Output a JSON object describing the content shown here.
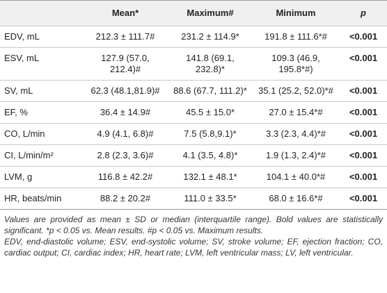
{
  "table": {
    "header": [
      "",
      "Mean*",
      "Maximum#",
      "Minimum",
      "p"
    ],
    "rows": [
      [
        "EDV, mL",
        "212.3 ± 111.7#",
        "231.2 ± 114.9*",
        "191.8 ± 111.6*#",
        "<0.001"
      ],
      [
        "ESV, mL",
        "127.9 (57.0, 212.4)#",
        "141.8 (69.1, 232.8)*",
        "109.3 (46.9, 195.8*#)",
        "<0.001"
      ],
      [
        "SV, mL",
        "62.3 (48.1,81.9)#",
        "88.6 (67.7, 111.2)*",
        "35.1 (25.2, 52.0)*#",
        "<0.001"
      ],
      [
        "EF, %",
        "36.4 ± 14.9#",
        "45.5 ± 15.0*",
        "27.0 ± 15.4*#",
        "<0.001"
      ],
      [
        "CO, L/min",
        "4.9 (4.1, 6.8)#",
        "7.5 (5.8,9.1)*",
        "3.3 (2.3, 4.4)*#",
        "<0.001"
      ],
      [
        "CI, L/min/m²",
        "2.8 (2.3, 3.6)#",
        "4.1 (3.5, 4.8)*",
        "1.9 (1.3, 2.4)*#",
        "<0.001"
      ],
      [
        "LVM, g",
        "116.8 ± 42.2#",
        "132.1 ± 48.1*",
        "104.1 ± 40.0*#",
        "<0.001"
      ],
      [
        "HR, beats/min",
        "88.2 ± 20.2#",
        "111.0 ± 33.5*",
        "68.0 ± 16.6*#",
        "<0.001"
      ]
    ],
    "notes": [
      "Values are provided as mean ± SD or median (interquartile range). Bold values are statistically significant. *p < 0.05 vs. Mean results. #p < 0.05 vs. Maximum results.",
      "EDV, end-diastolic volume; ESV, end-systolic volume; SV, stroke volume; EF, ejection fraction; CO, cardiac output; CI, cardiac index; HR, heart rate; LVM, left ventricular mass; LV, left ventricular."
    ]
  }
}
